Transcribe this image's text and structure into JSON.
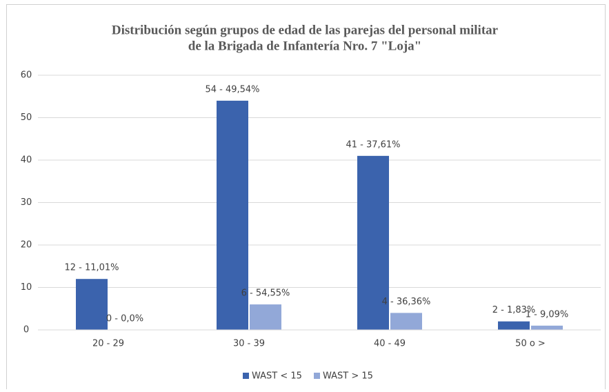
{
  "chart_data": {
    "type": "bar",
    "title": [
      "Distribución según grupos de edad de las parejas del personal militar",
      "de la Brigada de Infantería Nro. 7 \"Loja\""
    ],
    "categories": [
      "20 - 29",
      "30 - 39",
      "40 - 49",
      "50 o >"
    ],
    "series": [
      {
        "name": "WAST < 15",
        "color": "#3b63ad",
        "values": [
          12,
          54,
          41,
          2
        ],
        "value_labels": [
          "12 - 11,01%",
          "54 - 49,54%",
          "41 - 37,61%",
          "2 - 1,83%"
        ]
      },
      {
        "name": "WAST > 15",
        "color": "#92a8d8",
        "values": [
          0,
          6,
          4,
          1
        ],
        "value_labels": [
          "0 - 0,0%",
          "6 - 54,55%",
          "4 - 36,36%",
          "1 - 9,09%"
        ]
      }
    ],
    "ylim": [
      0,
      60
    ],
    "yticks": [
      0,
      10,
      20,
      30,
      40,
      50,
      60
    ],
    "grid": true,
    "legend": "bottom"
  }
}
